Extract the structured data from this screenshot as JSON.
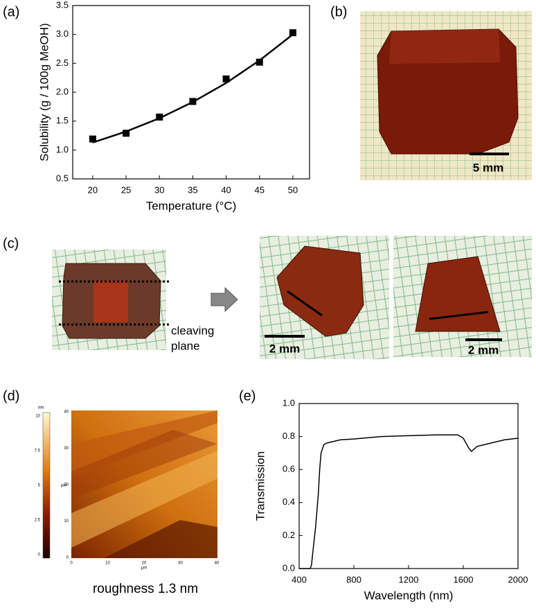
{
  "panel_labels": [
    "(a)",
    "(b)",
    "(c)",
    "(d)",
    "(e)"
  ],
  "chart_data": [
    {
      "type": "scatter",
      "xlabel": "Temperature (°C)",
      "ylabel": "Solubility (g / 100g MeOH)",
      "x": [
        20,
        25,
        30,
        35,
        40,
        45,
        50
      ],
      "series": [
        {
          "style": "markers",
          "color": "#000000",
          "values": [
            1.19,
            1.29,
            1.57,
            1.84,
            2.23,
            2.52,
            3.03
          ]
        },
        {
          "style": "line",
          "color": "#000000",
          "values": [
            1.13,
            1.32,
            1.55,
            1.83,
            2.16,
            2.55,
            3.0
          ]
        }
      ],
      "xlim": [
        17,
        52.5
      ],
      "xticks": [
        20,
        25,
        30,
        35,
        40,
        45,
        50
      ],
      "ylim": [
        0.5,
        3.5
      ],
      "yticks": [
        0.5,
        {
          "value": 1,
          "label": "1.0"
        },
        1.5,
        {
          "value": 2,
          "label": "2.0"
        },
        2.5,
        {
          "value": 3,
          "label": "3.0"
        },
        3.5
      ]
    },
    {
      "type": "line",
      "xlabel": "Wavelength (nm)",
      "ylabel": "Transmission",
      "x": [
        400,
        480,
        490,
        500,
        520,
        540,
        550,
        560,
        580,
        600,
        650,
        700,
        800,
        1000,
        1200,
        1400,
        1560,
        1600,
        1640,
        1660,
        1700,
        1800,
        1900,
        2000
      ],
      "series": [
        {
          "style": "line",
          "color": "#000000",
          "values": [
            0,
            0,
            0.02,
            0.1,
            0.25,
            0.45,
            0.6,
            0.7,
            0.75,
            0.76,
            0.77,
            0.78,
            0.785,
            0.8,
            0.805,
            0.81,
            0.81,
            0.79,
            0.73,
            0.71,
            0.74,
            0.76,
            0.78,
            0.79
          ]
        }
      ],
      "xlim": [
        400,
        2000
      ],
      "xticks": [
        400,
        800,
        1200,
        1600,
        2000
      ],
      "ylim": [
        0,
        1
      ],
      "yticks": [
        {
          "value": 0,
          "label": "0.0"
        },
        0.2,
        0.4,
        0.6,
        0.8,
        {
          "value": 1,
          "label": "1.0"
        }
      ]
    }
  ],
  "photo_b": {
    "scale": "5 mm"
  },
  "photo_c": {
    "cleaving": [
      "cleaving",
      "plane"
    ],
    "scale_1": "2 mm",
    "scale_2": "2 mm"
  },
  "afm": {
    "unit": "nm",
    "colorbar": [
      "10",
      "7.5",
      "5",
      "2.5",
      "0"
    ],
    "yaxis": [
      "40",
      "30",
      "20",
      "10",
      "0"
    ],
    "xaxis": [
      "0",
      "10",
      "20",
      "30",
      "40"
    ],
    "axis_unit": "µm",
    "caption": "roughness 1.3 nm"
  }
}
